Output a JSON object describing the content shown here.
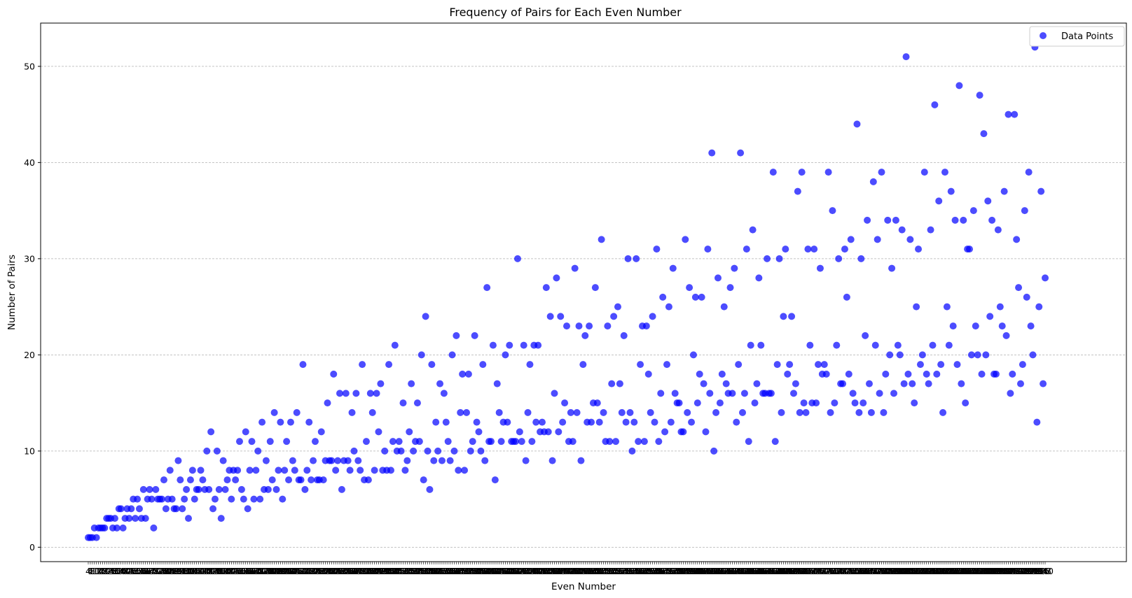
{
  "chart_data": {
    "type": "scatter",
    "title": "Frequency of Pairs for Each Even Number",
    "xlabel": "Even Number",
    "ylabel": "Number of Pairs",
    "ylim": [
      -1.5,
      54.5
    ],
    "yticks": [
      0,
      10,
      20,
      30,
      40,
      50
    ],
    "xtick_labels_note": "dense overlapping labels for each even number from 4 to 1000",
    "grid": "horizontal dashed",
    "legend": {
      "position": "top-right",
      "entries": [
        "Data Points"
      ]
    },
    "colors": {
      "points": "#0000ff",
      "grid": "#b0b0b0"
    },
    "series": [
      {
        "name": "Data Points",
        "x_start": 4,
        "x_step": 2,
        "values": [
          1,
          1,
          1,
          2,
          1,
          2,
          2,
          2,
          2,
          3,
          3,
          3,
          2,
          3,
          2,
          4,
          4,
          2,
          3,
          4,
          3,
          4,
          5,
          3,
          5,
          4,
          3,
          6,
          3,
          5,
          6,
          5,
          2,
          6,
          5,
          5,
          5,
          7,
          4,
          5,
          8,
          5,
          4,
          4,
          9,
          7,
          4,
          5,
          6,
          3,
          7,
          8,
          5,
          6,
          6,
          8,
          7,
          6,
          10,
          6,
          12,
          4,
          5,
          10,
          6,
          3,
          9,
          6,
          7,
          8,
          5,
          8,
          7,
          8,
          11,
          6,
          5,
          12,
          4,
          8,
          11,
          5,
          8,
          10,
          5,
          13,
          6,
          9,
          6,
          11,
          7,
          14,
          6,
          8,
          13,
          5,
          8,
          11,
          7,
          13,
          9,
          8,
          14,
          7,
          7,
          19,
          6,
          8,
          13,
          7,
          9,
          11,
          7,
          7,
          12,
          7,
          9,
          15,
          9,
          9,
          18,
          8,
          9,
          16,
          6,
          9,
          16,
          9,
          8,
          14,
          10,
          16,
          9,
          8,
          19,
          7,
          11,
          7,
          16,
          14,
          8,
          16,
          12,
          17,
          8,
          10,
          8,
          19,
          8,
          11,
          21,
          10,
          11,
          10,
          15,
          8,
          9,
          12,
          17,
          10,
          11,
          15,
          11,
          20,
          7,
          24,
          10,
          6,
          19,
          9,
          13,
          10,
          17,
          9,
          16,
          13,
          11,
          9,
          20,
          10,
          22,
          8,
          14,
          18,
          8,
          14,
          18,
          10,
          11,
          22,
          13,
          12,
          10,
          19,
          9,
          27,
          11,
          11,
          21,
          7,
          17,
          14,
          11,
          13,
          20,
          13,
          21,
          11,
          11,
          11,
          30,
          12,
          11,
          21,
          9,
          14,
          19,
          11,
          21,
          13,
          21,
          12,
          13,
          12,
          27,
          12,
          24,
          9,
          16,
          28,
          12,
          24,
          13,
          15,
          23,
          11,
          14,
          11,
          29,
          14,
          23,
          9,
          19,
          22,
          13,
          23,
          13,
          15,
          27,
          15,
          13,
          32,
          14,
          11,
          23,
          11,
          17,
          24,
          11,
          25,
          17,
          14,
          22,
          13,
          30,
          14,
          10,
          13,
          30,
          11,
          19,
          23,
          11,
          23,
          18,
          14,
          24,
          13,
          31,
          11,
          16,
          26,
          12,
          19,
          25,
          13,
          29,
          16,
          15,
          15,
          12,
          12,
          32,
          14,
          27,
          13,
          20,
          26,
          15,
          18,
          26,
          17,
          12,
          31,
          16,
          41,
          10,
          14,
          28,
          15,
          18,
          25,
          17,
          16,
          27,
          16,
          29,
          13,
          19,
          41,
          14,
          16,
          31,
          11,
          21,
          33,
          15,
          17,
          28,
          21,
          16,
          16,
          30,
          16,
          16,
          39,
          11,
          19,
          30,
          14,
          24,
          31,
          18,
          19,
          24,
          16,
          17,
          37,
          14,
          39,
          15,
          14,
          31,
          21,
          15,
          31,
          15,
          19,
          29,
          18,
          19,
          18,
          39,
          14,
          35,
          15,
          21,
          30,
          17,
          17,
          31,
          26,
          18,
          32,
          16,
          15,
          44,
          14,
          30,
          15,
          22,
          34,
          17,
          14,
          38,
          21,
          32,
          16,
          39,
          14,
          18,
          34,
          20,
          29,
          16,
          34,
          21,
          20,
          33,
          17,
          51,
          18,
          32,
          17,
          15,
          25,
          31,
          19,
          20,
          39,
          18,
          17,
          33,
          21,
          46,
          18,
          36,
          19,
          14,
          39,
          25,
          21,
          37,
          23,
          34,
          19,
          48,
          17,
          34,
          15,
          31,
          31,
          20,
          35,
          23,
          20,
          47,
          18,
          43,
          20,
          36,
          24,
          34,
          18,
          18,
          33,
          25,
          23,
          37,
          22,
          45,
          16,
          18,
          45,
          32,
          27,
          17,
          19,
          35,
          26,
          39,
          23,
          20,
          52,
          13,
          25,
          37,
          17,
          28
        ]
      }
    ]
  }
}
